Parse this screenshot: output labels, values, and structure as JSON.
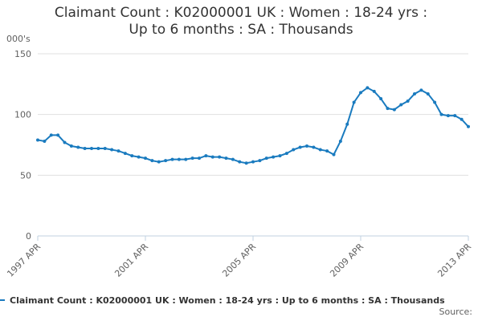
{
  "chart_data": {
    "type": "line",
    "title": "Claimant Count : K02000001 UK : Women : 18-24 yrs : Up to 6 months : SA : Thousands",
    "y_label": "000's",
    "source": "Source:",
    "categories": [
      "1997 APR",
      null,
      null,
      null,
      null,
      null,
      null,
      null,
      null,
      null,
      null,
      null,
      null,
      null,
      null,
      null,
      "2001 APR",
      null,
      null,
      null,
      null,
      null,
      null,
      null,
      null,
      null,
      null,
      null,
      null,
      null,
      null,
      null,
      "2005 APR",
      null,
      null,
      null,
      null,
      null,
      null,
      null,
      null,
      null,
      null,
      null,
      null,
      null,
      null,
      null,
      "2009 APR",
      null,
      null,
      null,
      null,
      null,
      null,
      null,
      null,
      null,
      null,
      null,
      null,
      null,
      null,
      null,
      "2013 APR"
    ],
    "series": [
      {
        "name": "Claimant Count : K02000001 UK : Women : 18-24 yrs : Up to 6 months : SA : Thousands",
        "color": "#1a7bbf",
        "values": [
          79,
          78,
          83,
          83,
          77,
          74,
          73,
          72,
          72,
          72,
          72,
          71,
          70,
          68,
          66,
          65,
          64,
          62,
          61,
          62,
          63,
          63,
          63,
          64,
          64,
          66,
          65,
          65,
          64,
          63,
          61,
          60,
          61,
          62,
          64,
          65,
          66,
          68,
          71,
          73,
          74,
          73,
          71,
          70,
          67,
          78,
          92,
          110,
          118,
          122,
          119,
          113,
          105,
          104,
          108,
          111,
          117,
          120,
          117,
          110,
          100,
          99,
          99,
          96,
          90
        ]
      }
    ],
    "ylim": [
      0,
      150
    ],
    "yticks": [
      0,
      50,
      100,
      150
    ],
    "grid": true
  }
}
